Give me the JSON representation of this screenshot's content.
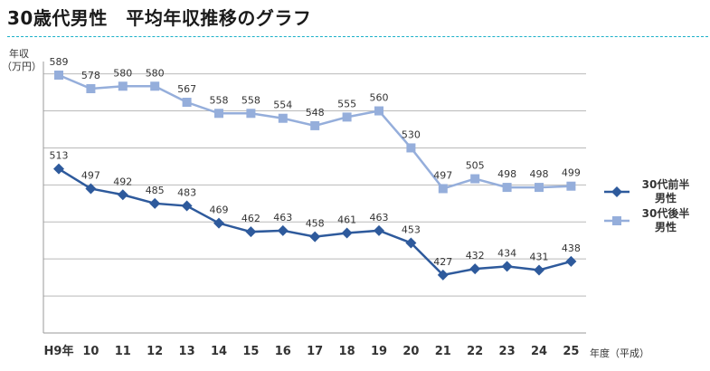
{
  "page": {
    "title": "30歳代男性　平均年収推移のグラフ"
  },
  "chart_data": {
    "type": "line",
    "title": "",
    "ylabel_line1": "年収",
    "ylabel_line2": "（万円）",
    "xlabel": "年度（平成）",
    "categories": [
      "H9年",
      "10",
      "11",
      "12",
      "13",
      "14",
      "15",
      "16",
      "17",
      "18",
      "19",
      "20",
      "21",
      "22",
      "23",
      "24",
      "25"
    ],
    "ylim": [
      380,
      600
    ],
    "ygrid_step": 30,
    "ytick_labels_shown": false,
    "grid": true,
    "legend_position": "right",
    "series": [
      {
        "name": "30代前半男性",
        "legend_line1": "30代前半",
        "legend_line2": "男性",
        "color": "#2e5a9c",
        "marker": "diamond",
        "values": [
          513,
          497,
          492,
          485,
          483,
          469,
          462,
          463,
          458,
          461,
          463,
          453,
          427,
          432,
          434,
          431,
          438
        ]
      },
      {
        "name": "30代後半男性",
        "legend_line1": "30代後半",
        "legend_line2": "男性",
        "color": "#95aedb",
        "marker": "square",
        "values": [
          589,
          578,
          580,
          580,
          567,
          558,
          558,
          554,
          548,
          555,
          560,
          530,
          497,
          505,
          498,
          498,
          499
        ]
      }
    ]
  }
}
